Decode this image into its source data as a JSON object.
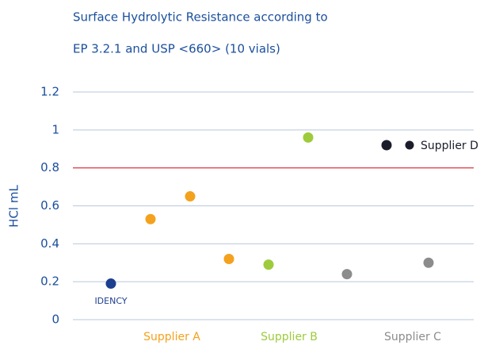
{
  "chart_data": {
    "type": "scatter",
    "title_lines": [
      "Surface Hydrolytic Resistance according to",
      "EP 3.2.1 and USP <660> (10 vials)"
    ],
    "y_label": "HCl mL",
    "ylim": [
      0,
      1.2
    ],
    "yticks": [
      0,
      0.2,
      0.4,
      0.6,
      0.8,
      1,
      1.2
    ],
    "grid": true,
    "reference_line": {
      "value": 0.8,
      "color": "#e0282e"
    },
    "series": [
      {
        "name": "IDENCY",
        "color": "#1d3f8f",
        "values": [
          0.19
        ]
      },
      {
        "name": "Supplier A",
        "color": "#f4a11d",
        "values": [
          0.53,
          0.65,
          0.32
        ]
      },
      {
        "name": "Supplier B",
        "color": "#9dcb3c",
        "values": [
          0.29,
          0.96
        ]
      },
      {
        "name": "Supplier C",
        "color": "#8c8c8c",
        "values": [
          0.24,
          0.3
        ]
      },
      {
        "name": "Supplier D",
        "color": "#1c1d2b",
        "values": [
          0.92
        ]
      }
    ]
  }
}
